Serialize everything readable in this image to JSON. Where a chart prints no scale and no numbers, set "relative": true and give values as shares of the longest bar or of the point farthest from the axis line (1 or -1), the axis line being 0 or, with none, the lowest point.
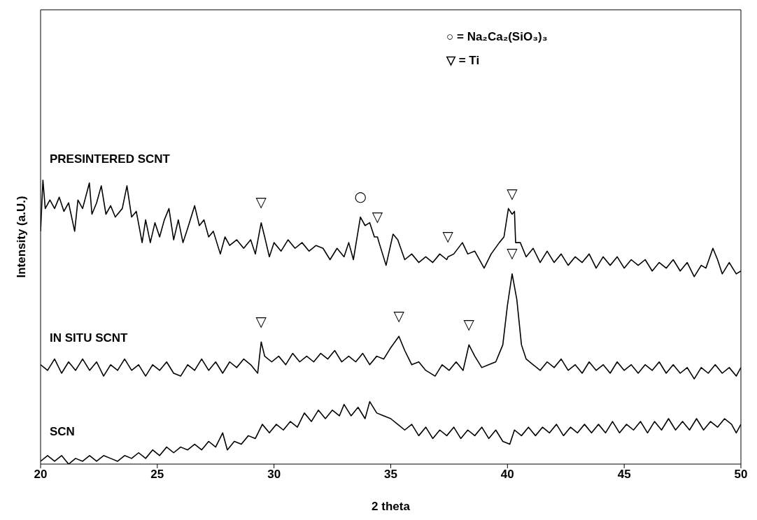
{
  "chart_data": {
    "type": "line",
    "xlabel": "2 theta",
    "ylabel": "Intensity (a.U.)",
    "relative": true,
    "xlim": [
      20,
      50
    ],
    "xticks": [
      20,
      25,
      30,
      35,
      40,
      45,
      50
    ],
    "legend": false,
    "marker": "none",
    "line_style": "solid",
    "tick_labels": "x",
    "series": [
      {
        "name": "PRESINTERED SCNT",
        "color": "#000000",
        "x": [
          20.0,
          20.1,
          20.2,
          20.4,
          20.6,
          20.8,
          21.0,
          21.2,
          21.46,
          21.6,
          21.8,
          22.09,
          22.2,
          22.4,
          22.6,
          22.8,
          23.0,
          23.2,
          23.5,
          23.7,
          23.9,
          24.1,
          24.35,
          24.5,
          24.7,
          24.9,
          25.1,
          25.3,
          25.5,
          25.7,
          25.9,
          26.1,
          26.3,
          26.6,
          26.8,
          27.0,
          27.2,
          27.4,
          27.7,
          27.9,
          28.1,
          28.4,
          28.7,
          29.0,
          29.2,
          29.45,
          29.6,
          29.8,
          30.0,
          30.3,
          30.6,
          30.9,
          31.2,
          31.5,
          31.8,
          32.1,
          32.4,
          32.7,
          33.0,
          33.2,
          33.4,
          33.7,
          33.9,
          34.1,
          34.3,
          34.43,
          34.5,
          34.8,
          35.1,
          35.3,
          35.6,
          35.9,
          36.2,
          36.5,
          36.8,
          37.1,
          37.4,
          37.45,
          37.7,
          38.07,
          38.3,
          38.6,
          39.0,
          39.3,
          39.65,
          39.85,
          40.04,
          40.2,
          40.3,
          40.35,
          40.55,
          40.8,
          41.1,
          41.4,
          41.7,
          42.0,
          42.3,
          42.6,
          42.9,
          43.2,
          43.5,
          43.8,
          44.1,
          44.4,
          44.7,
          45.0,
          45.3,
          45.6,
          45.9,
          46.2,
          46.5,
          46.8,
          47.1,
          47.4,
          47.7,
          48.0,
          48.3,
          48.5,
          48.8,
          49.0,
          49.2,
          49.5,
          49.8,
          50.0
        ],
        "values": [
          0.82,
          1.0,
          0.9,
          0.93,
          0.9,
          0.94,
          0.89,
          0.92,
          0.82,
          0.93,
          0.9,
          0.99,
          0.88,
          0.92,
          0.98,
          0.88,
          0.91,
          0.87,
          0.9,
          0.98,
          0.87,
          0.89,
          0.78,
          0.86,
          0.78,
          0.85,
          0.8,
          0.86,
          0.9,
          0.79,
          0.86,
          0.78,
          0.83,
          0.91,
          0.84,
          0.86,
          0.8,
          0.82,
          0.74,
          0.8,
          0.77,
          0.79,
          0.76,
          0.79,
          0.74,
          0.85,
          0.8,
          0.73,
          0.78,
          0.75,
          0.79,
          0.76,
          0.78,
          0.75,
          0.77,
          0.76,
          0.72,
          0.76,
          0.73,
          0.78,
          0.72,
          0.87,
          0.84,
          0.85,
          0.8,
          0.8,
          0.78,
          0.7,
          0.81,
          0.79,
          0.72,
          0.74,
          0.71,
          0.73,
          0.71,
          0.74,
          0.72,
          0.73,
          0.74,
          0.78,
          0.74,
          0.75,
          0.69,
          0.74,
          0.78,
          0.8,
          0.9,
          0.88,
          0.89,
          0.78,
          0.78,
          0.73,
          0.76,
          0.71,
          0.75,
          0.71,
          0.74,
          0.7,
          0.73,
          0.71,
          0.74,
          0.69,
          0.73,
          0.7,
          0.73,
          0.69,
          0.72,
          0.7,
          0.72,
          0.68,
          0.71,
          0.69,
          0.72,
          0.68,
          0.71,
          0.66,
          0.7,
          0.69,
          0.76,
          0.72,
          0.67,
          0.71,
          0.67,
          0.68
        ]
      },
      {
        "name": "IN SITU SCNT",
        "color": "#000000",
        "x": [
          20.0,
          20.3,
          20.6,
          20.9,
          21.2,
          21.5,
          21.8,
          22.1,
          22.4,
          22.7,
          23.0,
          23.3,
          23.6,
          23.9,
          24.2,
          24.5,
          24.8,
          25.1,
          25.4,
          25.7,
          26.0,
          26.3,
          26.6,
          26.9,
          27.2,
          27.5,
          27.8,
          28.1,
          28.4,
          28.7,
          29.0,
          29.3,
          29.45,
          29.6,
          29.9,
          30.2,
          30.5,
          30.8,
          31.1,
          31.4,
          31.7,
          32.0,
          32.3,
          32.6,
          32.9,
          33.2,
          33.5,
          33.8,
          34.1,
          34.4,
          34.7,
          35.0,
          35.35,
          35.6,
          35.9,
          36.2,
          36.5,
          36.9,
          37.2,
          37.5,
          37.8,
          38.1,
          38.35,
          38.6,
          38.9,
          39.2,
          39.5,
          39.8,
          40.0,
          40.2,
          40.4,
          40.6,
          40.8,
          41.1,
          41.4,
          41.7,
          42.0,
          42.3,
          42.6,
          42.9,
          43.2,
          43.5,
          43.8,
          44.1,
          44.4,
          44.7,
          45.0,
          45.3,
          45.6,
          45.9,
          46.2,
          46.5,
          46.8,
          47.1,
          47.4,
          47.7,
          48.0,
          48.3,
          48.6,
          48.9,
          49.2,
          49.5,
          49.8,
          50.0
        ],
        "values": [
          0.35,
          0.33,
          0.37,
          0.32,
          0.36,
          0.33,
          0.37,
          0.33,
          0.36,
          0.31,
          0.35,
          0.33,
          0.37,
          0.33,
          0.35,
          0.31,
          0.35,
          0.33,
          0.36,
          0.32,
          0.31,
          0.35,
          0.33,
          0.37,
          0.33,
          0.36,
          0.32,
          0.36,
          0.34,
          0.37,
          0.35,
          0.32,
          0.43,
          0.38,
          0.36,
          0.38,
          0.35,
          0.39,
          0.36,
          0.38,
          0.36,
          0.39,
          0.37,
          0.4,
          0.36,
          0.38,
          0.36,
          0.39,
          0.35,
          0.38,
          0.37,
          0.41,
          0.45,
          0.4,
          0.35,
          0.36,
          0.33,
          0.31,
          0.35,
          0.33,
          0.36,
          0.33,
          0.42,
          0.38,
          0.34,
          0.35,
          0.36,
          0.42,
          0.56,
          0.67,
          0.58,
          0.42,
          0.37,
          0.35,
          0.33,
          0.36,
          0.34,
          0.37,
          0.33,
          0.35,
          0.32,
          0.36,
          0.33,
          0.35,
          0.32,
          0.36,
          0.33,
          0.35,
          0.32,
          0.35,
          0.33,
          0.36,
          0.32,
          0.35,
          0.32,
          0.34,
          0.3,
          0.34,
          0.32,
          0.35,
          0.32,
          0.34,
          0.31,
          0.34
        ]
      },
      {
        "name": "SCN",
        "color": "#000000",
        "x": [
          20.0,
          20.3,
          20.6,
          20.9,
          21.2,
          21.5,
          21.8,
          22.1,
          22.4,
          22.7,
          23.0,
          23.3,
          23.6,
          23.9,
          24.2,
          24.5,
          24.8,
          25.1,
          25.4,
          25.7,
          26.0,
          26.3,
          26.6,
          26.9,
          27.2,
          27.5,
          27.8,
          28.0,
          28.3,
          28.6,
          28.9,
          29.2,
          29.5,
          29.8,
          30.1,
          30.4,
          30.7,
          31.0,
          31.3,
          31.6,
          31.9,
          32.2,
          32.5,
          32.8,
          33.0,
          33.3,
          33.6,
          33.9,
          34.1,
          34.4,
          34.7,
          35.0,
          35.3,
          35.6,
          35.9,
          36.2,
          36.5,
          36.8,
          37.1,
          37.4,
          37.7,
          38.0,
          38.3,
          38.6,
          38.9,
          39.2,
          39.5,
          39.8,
          40.1,
          40.3,
          40.6,
          40.9,
          41.2,
          41.5,
          41.8,
          42.1,
          42.4,
          42.7,
          43.0,
          43.3,
          43.6,
          43.9,
          44.2,
          44.5,
          44.8,
          45.1,
          45.4,
          45.7,
          46.0,
          46.3,
          46.6,
          46.9,
          47.2,
          47.5,
          47.8,
          48.1,
          48.4,
          48.7,
          49.0,
          49.3,
          49.6,
          49.8,
          50.0
        ],
        "values": [
          0.01,
          0.03,
          0.01,
          0.03,
          0.0,
          0.02,
          0.01,
          0.03,
          0.01,
          0.03,
          0.02,
          0.01,
          0.03,
          0.02,
          0.04,
          0.02,
          0.05,
          0.03,
          0.06,
          0.04,
          0.06,
          0.05,
          0.07,
          0.05,
          0.08,
          0.06,
          0.11,
          0.05,
          0.08,
          0.07,
          0.1,
          0.09,
          0.14,
          0.11,
          0.14,
          0.12,
          0.15,
          0.13,
          0.18,
          0.15,
          0.19,
          0.16,
          0.19,
          0.17,
          0.21,
          0.17,
          0.2,
          0.16,
          0.22,
          0.18,
          0.17,
          0.16,
          0.14,
          0.12,
          0.14,
          0.1,
          0.13,
          0.09,
          0.12,
          0.1,
          0.13,
          0.09,
          0.12,
          0.1,
          0.13,
          0.09,
          0.12,
          0.08,
          0.07,
          0.12,
          0.1,
          0.13,
          0.1,
          0.13,
          0.11,
          0.14,
          0.1,
          0.13,
          0.11,
          0.14,
          0.11,
          0.14,
          0.11,
          0.15,
          0.11,
          0.14,
          0.12,
          0.15,
          0.11,
          0.15,
          0.12,
          0.16,
          0.12,
          0.15,
          0.12,
          0.16,
          0.12,
          0.15,
          0.13,
          0.16,
          0.14,
          0.11,
          0.14
        ]
      }
    ],
    "annotations": [
      "○ = Na₂Ca₂(SiO₃)₃",
      "▽ = Ti",
      {
        "text": "▽",
        "x": 29.45,
        "y": 0.85
      },
      {
        "text": "○",
        "x": 33.7,
        "y": 0.87
      },
      {
        "text": "▽",
        "x": 34.43,
        "y": 0.8
      },
      {
        "text": "▽",
        "x": 37.45,
        "y": 0.73
      },
      {
        "text": "▽",
        "x": 40.2,
        "y": 0.88
      },
      {
        "text": "▽",
        "x": 29.45,
        "y": 0.43
      },
      {
        "text": "▽",
        "x": 35.35,
        "y": 0.45
      },
      {
        "text": "▽",
        "x": 38.35,
        "y": 0.42
      },
      {
        "text": "▽",
        "x": 40.2,
        "y": 0.67
      }
    ]
  }
}
